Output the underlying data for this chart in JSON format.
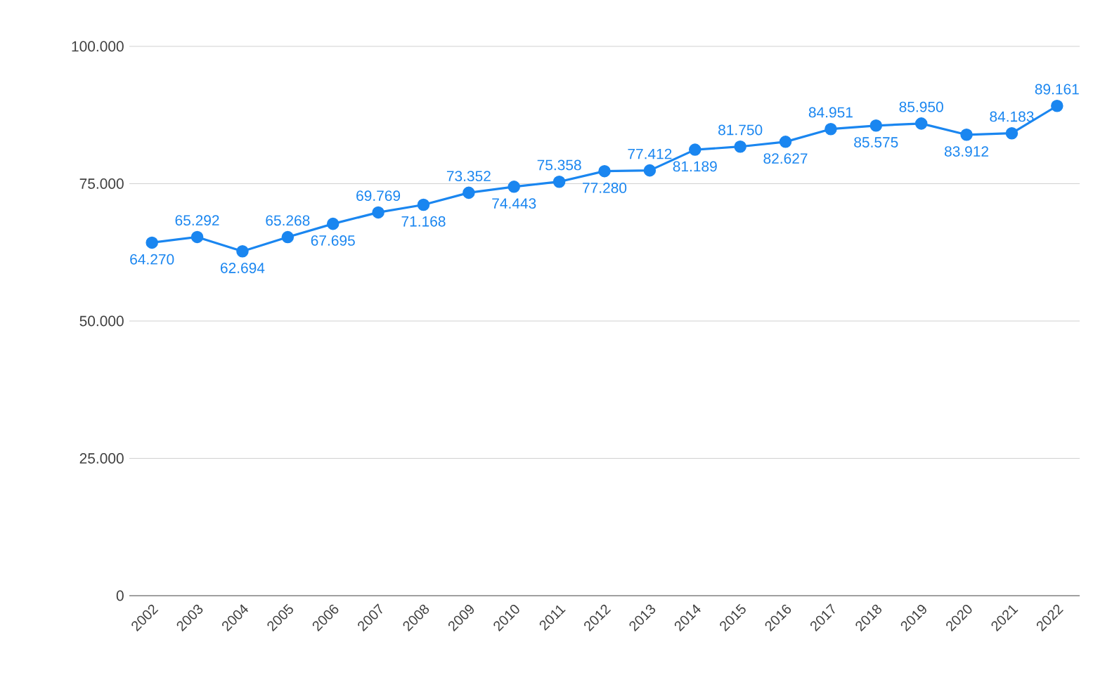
{
  "chart_data": {
    "type": "line",
    "categories": [
      "2002",
      "2003",
      "2004",
      "2005",
      "2006",
      "2007",
      "2008",
      "2009",
      "2010",
      "2011",
      "2012",
      "2013",
      "2014",
      "2015",
      "2016",
      "2017",
      "2018",
      "2019",
      "2020",
      "2021",
      "2022"
    ],
    "series": [
      {
        "color": "#1a86f0",
        "values": [
          64270,
          65292,
          62694,
          65268,
          67695,
          69769,
          71168,
          73352,
          74443,
          75358,
          77280,
          77412,
          81189,
          81750,
          82627,
          84951,
          85575,
          85950,
          83912,
          84183,
          89161
        ],
        "value_labels": [
          "64.270",
          "65.292",
          "62.694",
          "65.268",
          "67.695",
          "69.769",
          "71.168",
          "73.352",
          "74.443",
          "75.358",
          "77.280",
          "77.412",
          "81.189",
          "81.750",
          "82.627",
          "84.951",
          "85.575",
          "85.950",
          "83.912",
          "84.183",
          "89.161"
        ]
      }
    ],
    "ylim": [
      0,
      100000
    ],
    "yticks": [
      0,
      {
        "value": 25000,
        "label": "25.000"
      },
      {
        "value": 50000,
        "label": "50.000"
      },
      {
        "value": 75000,
        "label": "75.000"
      },
      {
        "value": 100000,
        "label": "100.000"
      }
    ],
    "grid": "y",
    "marker": "circle",
    "line_style": "solid"
  }
}
